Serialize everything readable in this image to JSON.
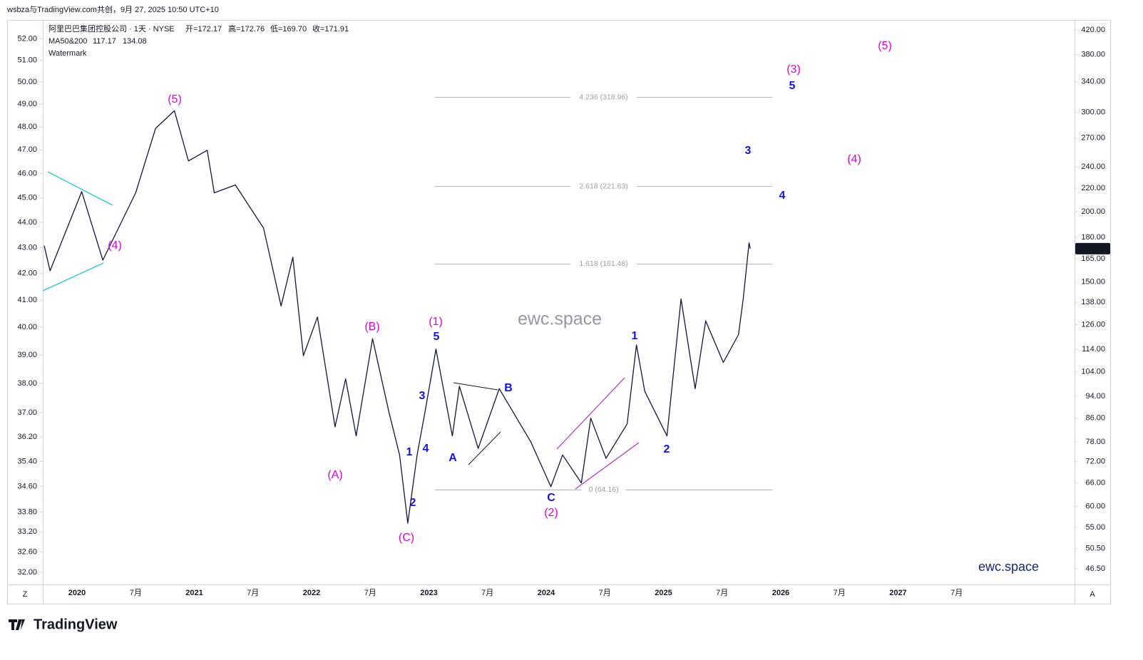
{
  "header": {
    "credit": "wsbza与TradingView.com共创，9月 27, 2025 10:50 UTC+10",
    "brand": "TradingView",
    "scale_buttons": [
      "Z",
      "A"
    ]
  },
  "chart_data": {
    "type": "line",
    "symbol": "阿里巴巴集团控股公司 · 1天 · NYSE",
    "ohlc": [
      "开=172.17",
      "高=172.76",
      "低=169.70",
      "收=171.91"
    ],
    "ma": {
      "label": "MA50&200",
      "values": [
        117.17,
        134.08
      ],
      "colors": [
        "#2962ff",
        "#e000e0"
      ]
    },
    "watermark_label": "Watermark",
    "watermarks": [
      "ewc.space",
      "ewc.space"
    ],
    "log_scale": true,
    "grid": false,
    "x": [
      2019.72,
      2019.77,
      2020.04,
      2020.22,
      2020.5,
      2020.67,
      2020.83,
      2020.95,
      2021.11,
      2021.17,
      2021.35,
      2021.59,
      2021.74,
      2021.84,
      2021.93,
      2022.05,
      2022.2,
      2022.29,
      2022.38,
      2022.52,
      2022.66,
      2022.75,
      2022.82,
      2022.9,
      2022.97,
      2023.06,
      2023.2,
      2023.26,
      2023.42,
      2023.6,
      2023.87,
      2024.04,
      2024.14,
      2024.3,
      2024.38,
      2024.51,
      2024.69,
      2024.77,
      2024.84,
      2025.03,
      2025.15,
      2025.27,
      2025.36,
      2025.51,
      2025.64,
      2025.68,
      2025.73,
      2025.74
    ],
    "series": [
      {
        "color": "#131340",
        "values": [
          174,
          157,
          217,
          164,
          216,
          281,
          302,
          246,
          257,
          216,
          223,
          187,
          136,
          166,
          111,
          130,
          83,
          101,
          80,
          119,
          88,
          74,
          56,
          74,
          89,
          114,
          80,
          98,
          76,
          97,
          78,
          65,
          74,
          66,
          86,
          73,
          84,
          116,
          96,
          80,
          140,
          97,
          128,
          108,
          121,
          140,
          176,
          171.91
        ]
      }
    ],
    "xlim": [
      2019.708,
      2028.505
    ],
    "xticks": [
      {
        "value": 2020,
        "label": "2020"
      },
      {
        "value": 2020.5,
        "label": "7月"
      },
      {
        "value": 2021,
        "label": "2021"
      },
      {
        "value": 2021.5,
        "label": "7月"
      },
      {
        "value": 2022,
        "label": "2022"
      },
      {
        "value": 2022.5,
        "label": "7月"
      },
      {
        "value": 2023,
        "label": "2023"
      },
      {
        "value": 2023.5,
        "label": "7月"
      },
      {
        "value": 2024,
        "label": "2024"
      },
      {
        "value": 2024.5,
        "label": "7月"
      },
      {
        "value": 2025,
        "label": "2025"
      },
      {
        "value": 2025.5,
        "label": "7月"
      },
      {
        "value": 2026,
        "label": "2026"
      },
      {
        "value": 2026.5,
        "label": "7月"
      },
      {
        "value": 2027,
        "label": "2027"
      },
      {
        "value": 2027.5,
        "label": "7月"
      }
    ],
    "ylim": [
      43.6,
      437.6
    ],
    "yticks": [
      {
        "value": 420,
        "label": "420.00"
      },
      {
        "value": 380,
        "label": "380.00"
      },
      {
        "value": 340,
        "label": "340.00"
      },
      {
        "value": 300,
        "label": "300.00"
      },
      {
        "value": 270,
        "label": "270.00"
      },
      {
        "value": 240,
        "label": "240.00"
      },
      {
        "value": 220,
        "label": "220.00"
      },
      {
        "value": 200,
        "label": "200.00"
      },
      {
        "value": 180,
        "label": "180.00"
      },
      {
        "value": 165,
        "label": "165.00"
      },
      {
        "value": 150,
        "label": "150.00"
      },
      {
        "value": 138,
        "label": "138.00"
      },
      {
        "value": 126,
        "label": "126.00"
      },
      {
        "value": 114,
        "label": "114.00"
      },
      {
        "value": 104,
        "label": "104.00"
      },
      {
        "value": 94,
        "label": "94.00"
      },
      {
        "value": 86,
        "label": "86.00"
      },
      {
        "value": 78,
        "label": "78.00"
      },
      {
        "value": 72,
        "label": "72.00"
      },
      {
        "value": 66,
        "label": "66.00"
      },
      {
        "value": 60,
        "label": "60.00"
      },
      {
        "value": 55,
        "label": "55.00"
      },
      {
        "value": 50.5,
        "label": "50.50"
      },
      {
        "value": 46.5,
        "label": "46.50"
      }
    ],
    "y2lim": [
      31.65,
      52.9
    ],
    "y2ticks": [
      {
        "value": 52,
        "label": "52.00"
      },
      {
        "value": 51,
        "label": "51.00"
      },
      {
        "value": 50,
        "label": "50.00"
      },
      {
        "value": 49,
        "label": "49.00"
      },
      {
        "value": 48,
        "label": "48.00"
      },
      {
        "value": 47,
        "label": "47.00"
      },
      {
        "value": 46,
        "label": "46.00"
      },
      {
        "value": 45,
        "label": "45.00"
      },
      {
        "value": 44,
        "label": "44.00"
      },
      {
        "value": 43,
        "label": "43.00"
      },
      {
        "value": 42,
        "label": "42.00"
      },
      {
        "value": 41,
        "label": "41.00"
      },
      {
        "value": 40,
        "label": "40.00"
      },
      {
        "value": 39,
        "label": "39.00"
      },
      {
        "value": 38,
        "label": "38.00"
      },
      {
        "value": 37,
        "label": "37.00"
      },
      {
        "value": 36.2,
        "label": "36.20"
      },
      {
        "value": 35.4,
        "label": "35.40"
      },
      {
        "value": 34.6,
        "label": "34.60"
      },
      {
        "value": 33.8,
        "label": "33.80"
      },
      {
        "value": 33.2,
        "label": "33.20"
      },
      {
        "value": 32.6,
        "label": "32.60"
      },
      {
        "value": 32,
        "label": "32.00"
      }
    ],
    "fib_range": [
      2023.05,
      2025.93
    ],
    "fib_levels": [
      {
        "value": 318.96,
        "label": "4.236 (318.96)"
      },
      {
        "value": 221.63,
        "label": "2.618 (221.63)"
      },
      {
        "value": 161.48,
        "label": "1.618 (161.48)"
      },
      {
        "value": 64.16,
        "label": "0 (64.16)"
      }
    ],
    "fib_color": "#9e9e9e",
    "wave_colors": {
      "major": "#e000e0",
      "minor": "#1414d8"
    },
    "annotations": [
      {
        "text": "(5)",
        "level": "major"
      },
      {
        "text": "(4)",
        "level": "major"
      },
      {
        "text": "(A)",
        "level": "major"
      },
      {
        "text": "(B)",
        "level": "major"
      },
      {
        "text": "(C)",
        "level": "major"
      },
      {
        "text": "(1)",
        "level": "major"
      },
      {
        "text": "5",
        "level": "minor"
      },
      {
        "text": "3",
        "level": "minor"
      },
      {
        "text": "1",
        "level": "minor"
      },
      {
        "text": "4",
        "level": "minor"
      },
      {
        "text": "2",
        "level": "minor"
      },
      {
        "text": "A",
        "level": "minor"
      },
      {
        "text": "B",
        "level": "minor"
      },
      {
        "text": "C",
        "level": "minor"
      },
      {
        "text": "(2)",
        "level": "major"
      },
      {
        "text": "1",
        "level": "minor"
      },
      {
        "text": "2",
        "level": "minor"
      },
      {
        "text": "3",
        "level": "minor"
      },
      {
        "text": "4",
        "level": "minor"
      },
      {
        "text": "5",
        "level": "minor"
      },
      {
        "text": "(3)",
        "level": "major"
      },
      {
        "text": "(4)",
        "level": "major"
      },
      {
        "text": "(5)",
        "level": "major"
      }
    ]
  }
}
